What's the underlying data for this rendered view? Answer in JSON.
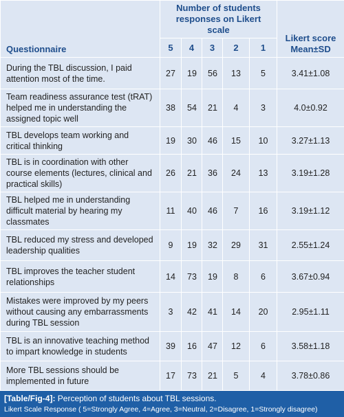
{
  "header": {
    "questionnaire": "Questionnaire",
    "responses_title": "Number of students responses on Likert scale",
    "scale": [
      5,
      4,
      3,
      2,
      1
    ],
    "score_title": "Likert score Mean±SD"
  },
  "rows": [
    {
      "question": "During the TBL discussion, I paid attention most of the time.",
      "counts": [
        27,
        19,
        56,
        13,
        5
      ],
      "score": "3.41±1.08"
    },
    {
      "question": "Team readiness assurance test (tRAT) helped me in understanding the assigned topic well",
      "counts": [
        38,
        54,
        21,
        4,
        3
      ],
      "score": "4.0±0.92"
    },
    {
      "question": "TBL develops team working and critical thinking",
      "counts": [
        19,
        30,
        46,
        15,
        10
      ],
      "score": "3.27±1.13"
    },
    {
      "question": "TBL is in coordination with other course elements (lectures, clinical and practical skills)",
      "counts": [
        26,
        21,
        36,
        24,
        13
      ],
      "score": "3.19±1.28"
    },
    {
      "question": "TBL helped me in understanding difficult material by hearing my classmates",
      "counts": [
        11,
        40,
        46,
        7,
        16
      ],
      "score": "3.19±1.12"
    },
    {
      "question": "TBL reduced my stress and developed leadership qualities",
      "counts": [
        9,
        19,
        32,
        29,
        31
      ],
      "score": "2.55±1.24"
    },
    {
      "question": "TBL improves the teacher student relationships",
      "counts": [
        14,
        73,
        19,
        8,
        6
      ],
      "score": "3.67±0.94"
    },
    {
      "question": "Mistakes were improved by my peers without causing any embarrassments during TBL session",
      "counts": [
        3,
        42,
        41,
        14,
        20
      ],
      "score": "2.95±1.11"
    },
    {
      "question": "TBL is an innovative teaching method to impart knowledge in students",
      "counts": [
        39,
        16,
        47,
        12,
        6
      ],
      "score": "3.58±1.18"
    },
    {
      "question": "More TBL sessions should be implemented in future",
      "counts": [
        17,
        73,
        21,
        5,
        4
      ],
      "score": "3.78±0.86"
    }
  ],
  "caption": {
    "label": "[Table/Fig-4]:",
    "text": "Perception of students about TBL sessions.",
    "note": "Likert Scale Response ( 5=Strongly Agree, 4=Agree, 3=Neutral, 2=Disagree, 1=Strongly disagree)"
  }
}
